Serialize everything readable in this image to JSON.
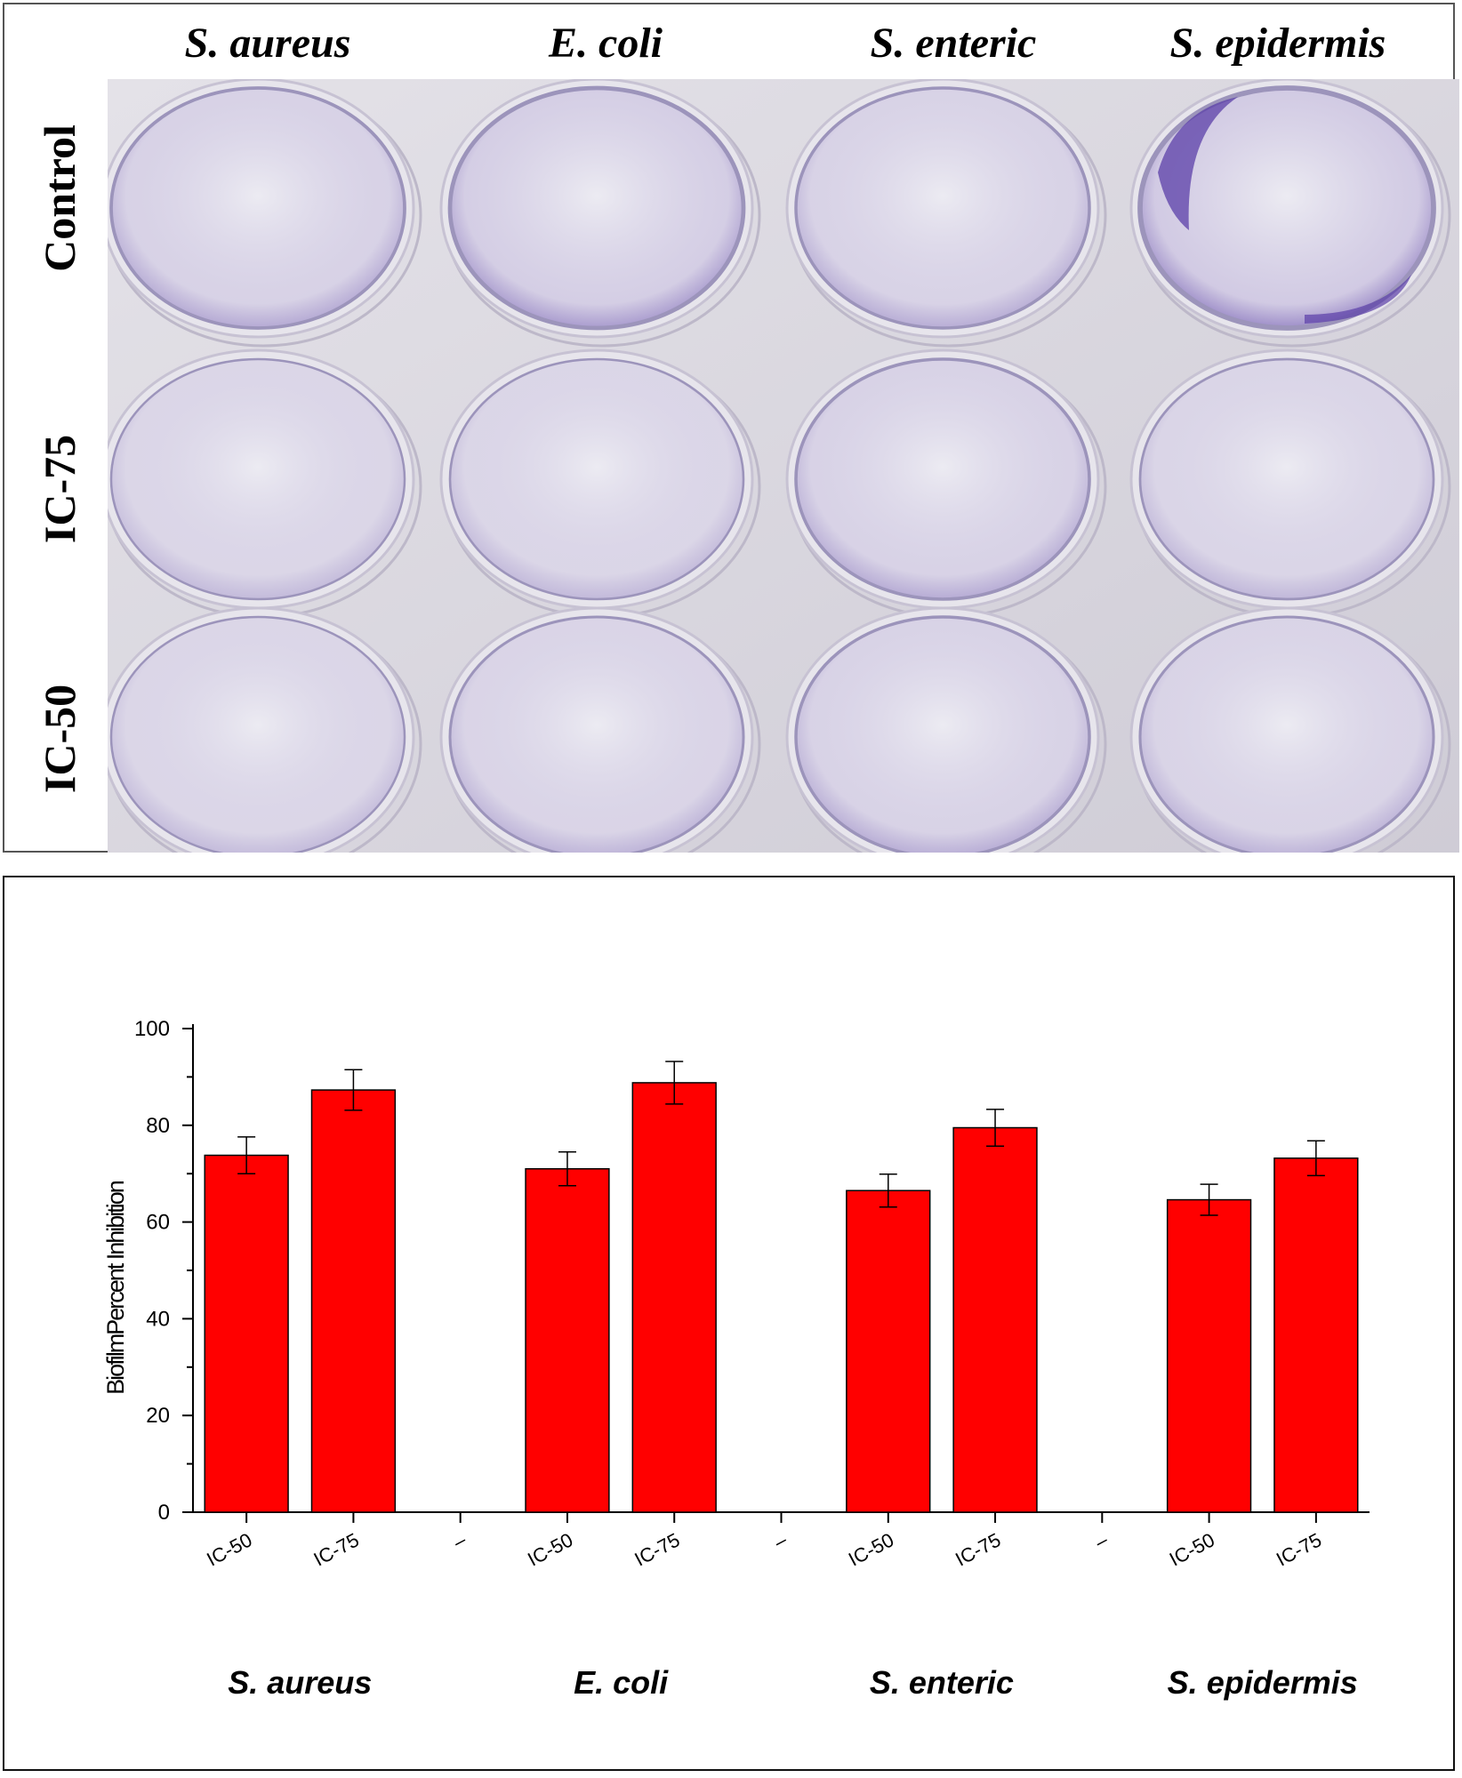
{
  "photo": {
    "column_labels": [
      "S. aureus",
      "E. coli",
      "S. enteric",
      "S. epidermis"
    ],
    "row_labels": [
      "Control",
      "IC-75",
      "IC-50"
    ],
    "colors": {
      "plate": "#d9d6df",
      "well_rim": "#9c94bb",
      "stain_dark": "#5b3fa8",
      "stain_light": "#c9c0e0"
    },
    "wells": [
      [
        {
          "stain": 0.35
        },
        {
          "stain": 0.55
        },
        {
          "stain": 0.3
        },
        {
          "stain": 0.75
        }
      ],
      [
        {
          "stain": 0.1
        },
        {
          "stain": 0.12
        },
        {
          "stain": 0.32
        },
        {
          "stain": 0.15
        }
      ],
      [
        {
          "stain": 0.1
        },
        {
          "stain": 0.2
        },
        {
          "stain": 0.3
        },
        {
          "stain": 0.22
        }
      ]
    ]
  },
  "chart_data": {
    "type": "bar",
    "title": "",
    "ylabel": "BiofilmPercent Inhibition",
    "xlabel": "",
    "ylim": [
      0,
      100
    ],
    "yticks": [
      0,
      20,
      40,
      60,
      80,
      100
    ],
    "categories": [
      "IC-50",
      "IC-75",
      "–",
      "IC-50",
      "IC-75",
      "–",
      "IC-50",
      "IC-75",
      "–",
      "IC-50",
      "IC-75"
    ],
    "values": [
      73.8,
      87.3,
      null,
      71.0,
      88.8,
      null,
      66.5,
      79.5,
      null,
      64.6,
      73.2
    ],
    "errors": [
      3.8,
      4.2,
      null,
      3.5,
      4.4,
      null,
      3.4,
      3.8,
      null,
      3.2,
      3.6
    ],
    "groups": [
      "S. aureus",
      "E. coli",
      "S. enteric",
      "S. epidermis"
    ],
    "bar_color": "#ff0000",
    "grid": false
  }
}
